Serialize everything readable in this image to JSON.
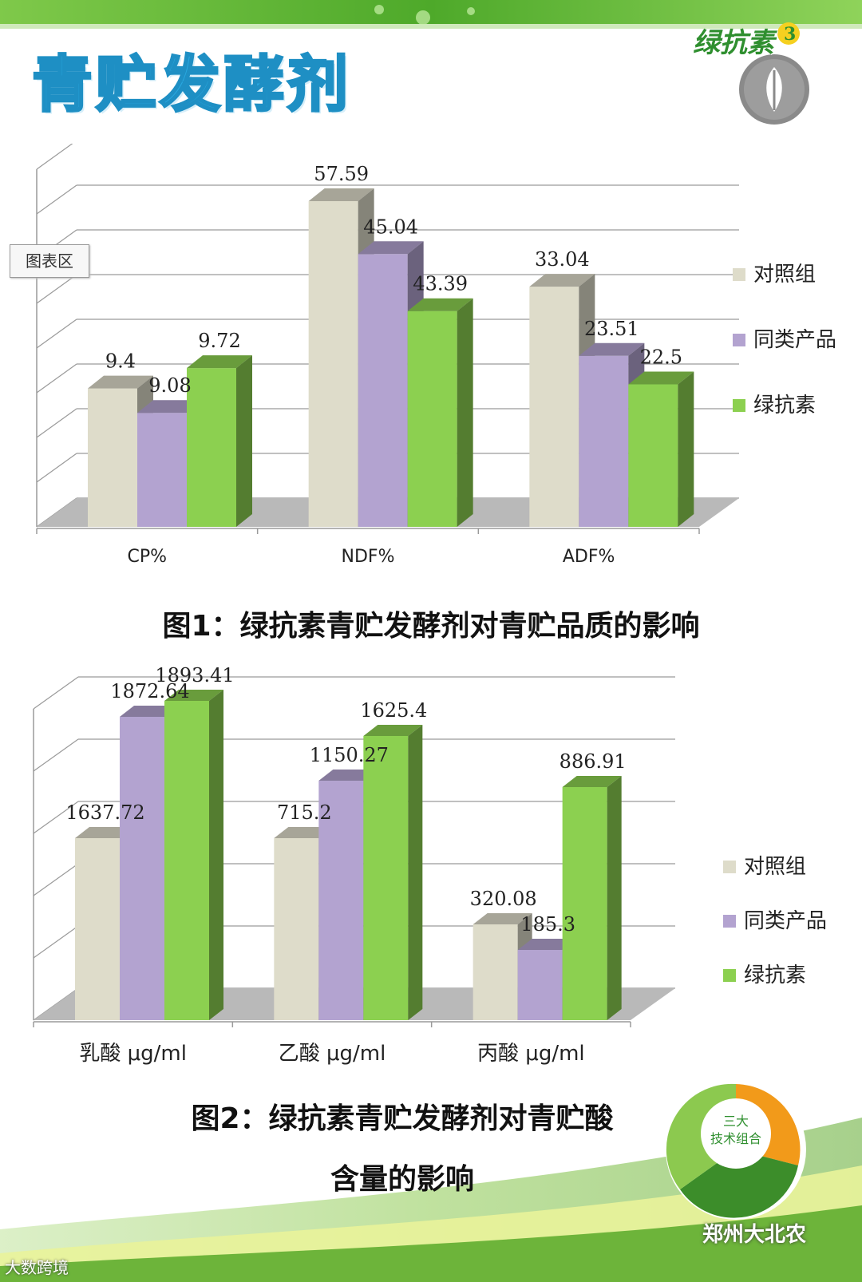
{
  "page": {
    "title": "青贮发酵剂",
    "logo_text": "绿抗素",
    "tooltip": "图表区",
    "caption1": "图1：绿抗素青贮发酵剂对青贮品质的影响",
    "caption2_line1": "图2：绿抗素青贮发酵剂对青贮酸",
    "caption2_line2": "含量的影响",
    "badge_top": "三大",
    "badge_mid": "技术组合",
    "watermark_left": "大数跨境",
    "watermark_right": "郑州大北农"
  },
  "colors": {
    "title": "#29a9e1",
    "control": "#dedcca",
    "similar": "#b3a3d0",
    "lvkangsu": "#8cd050",
    "accent_green": "#4f9a2a"
  },
  "chart_data": [
    {
      "type": "bar",
      "title": "",
      "categories": [
        "CP%",
        "NDF%",
        "ADF%"
      ],
      "series": [
        {
          "name": "对照组",
          "values": [
            9.4,
            57.59,
            33.04
          ],
          "color": "#dedcca"
        },
        {
          "name": "同类产品",
          "values": [
            9.08,
            45.04,
            23.51
          ],
          "color": "#b3a3d0"
        },
        {
          "name": "绿抗素",
          "values": [
            9.72,
            43.39,
            22.5
          ],
          "color": "#8cd050"
        }
      ],
      "data_labels": [
        [
          "9.4",
          "9.08",
          "9.72"
        ],
        [
          "57.59",
          "45.04",
          "43.39"
        ],
        [
          "33.04",
          "23.51",
          "22.5"
        ]
      ],
      "bar_levels": [
        [
          0.34,
          0.28,
          0.39
        ],
        [
          0.8,
          0.67,
          0.53
        ],
        [
          0.59,
          0.42,
          0.35
        ]
      ],
      "legend": "right",
      "grid": true,
      "style": "3d"
    },
    {
      "type": "bar",
      "title": "",
      "categories": [
        "乳酸 μg/ml",
        "乙酸 μg/ml",
        "丙酸 μg/ml"
      ],
      "series": [
        {
          "name": "对照组",
          "values": [
            1637.72,
            715.2,
            320.08
          ],
          "color": "#dedcca"
        },
        {
          "name": "同类产品",
          "values": [
            1872.64,
            1150.27,
            185.3
          ],
          "color": "#b3a3d0"
        },
        {
          "name": "绿抗素",
          "values": [
            1893.41,
            1625.4,
            886.91
          ],
          "color": "#8cd050"
        }
      ],
      "data_labels": [
        [
          "1637.72",
          "1872.64",
          "1893.41"
        ],
        [
          "715.2",
          "1150.27",
          "1625.4"
        ],
        [
          "320.08",
          "185.3",
          "886.91"
        ]
      ],
      "bar_levels": [
        [
          0.57,
          0.95,
          1.0
        ],
        [
          0.57,
          0.75,
          0.89
        ],
        [
          0.3,
          0.22,
          0.73
        ]
      ],
      "legend": "right",
      "grid": true,
      "style": "3d"
    }
  ]
}
